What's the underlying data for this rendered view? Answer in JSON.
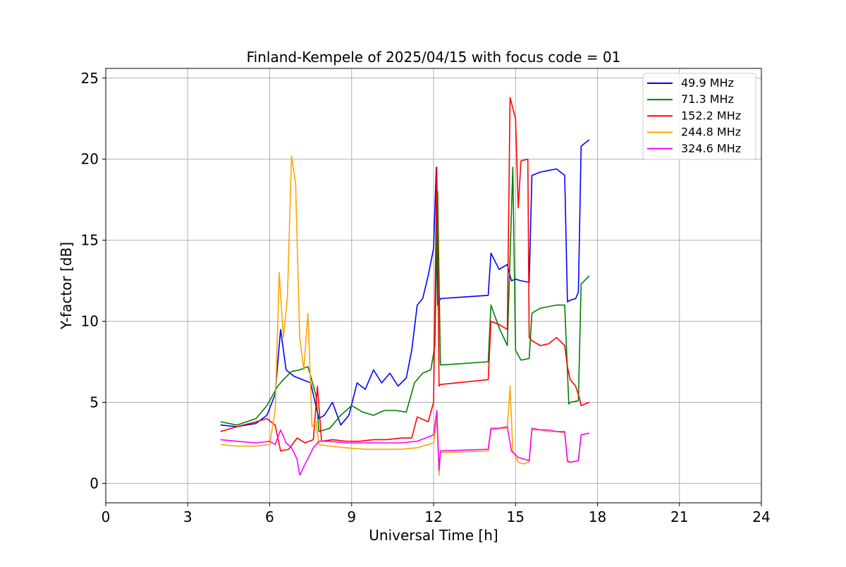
{
  "chart_data": {
    "type": "line",
    "title": "Finland-Kempele of 2025/04/15 with focus code = 01",
    "xlabel": "Universal Time [h]",
    "ylabel": "Y-factor [dB]",
    "xlim": [
      0,
      24
    ],
    "ylim": [
      -1.2,
      25.6
    ],
    "xticks": [
      0,
      3,
      6,
      9,
      12,
      15,
      18,
      21,
      24
    ],
    "xtick_labels": [
      "0",
      "3",
      "6",
      "9",
      "12",
      "15",
      "18",
      "21",
      "24"
    ],
    "yticks": [
      0,
      5,
      10,
      15,
      20,
      25
    ],
    "ytick_labels": [
      "0",
      "5",
      "10",
      "15",
      "20",
      "25"
    ],
    "grid": true,
    "legend_position": "top-right",
    "series": [
      {
        "name": " 49.9 MHz",
        "color": "#0000ff",
        "x": [
          4.2,
          4.8,
          5.5,
          5.9,
          6.2,
          6.4,
          6.6,
          6.9,
          7.2,
          7.5,
          7.8,
          8.0,
          8.3,
          8.6,
          8.9,
          9.2,
          9.5,
          9.8,
          10.1,
          10.4,
          10.7,
          11.0,
          11.2,
          11.4,
          11.6,
          11.8,
          12.0,
          12.1,
          12.15,
          12.25,
          14.0,
          14.1,
          14.4,
          14.7,
          14.85,
          15.0,
          15.2,
          15.5,
          15.6,
          15.9,
          16.2,
          16.5,
          16.8,
          16.9,
          17.0,
          17.2,
          17.3,
          17.4,
          17.7
        ],
        "y": [
          3.6,
          3.5,
          3.7,
          4.2,
          5.5,
          9.5,
          7.0,
          6.6,
          6.4,
          6.2,
          4.0,
          4.2,
          5.0,
          3.6,
          4.2,
          6.2,
          5.8,
          7.0,
          6.2,
          6.8,
          6.0,
          6.5,
          8.2,
          11.0,
          11.4,
          12.8,
          14.5,
          19.5,
          11.0,
          11.4,
          11.6,
          14.2,
          13.2,
          13.5,
          12.5,
          12.6,
          12.5,
          12.4,
          19.0,
          19.2,
          19.3,
          19.4,
          19.0,
          11.2,
          11.3,
          11.4,
          11.8,
          20.8,
          21.2
        ]
      },
      {
        "name": " 71.3 MHz",
        "color": "#008000",
        "x": [
          4.2,
          4.8,
          5.5,
          5.9,
          6.3,
          6.5,
          6.8,
          7.1,
          7.4,
          7.7,
          7.8,
          8.2,
          8.6,
          9.0,
          9.4,
          9.8,
          10.2,
          10.6,
          11.0,
          11.3,
          11.6,
          11.9,
          12.05,
          12.15,
          12.25,
          14.0,
          14.1,
          14.4,
          14.7,
          14.9,
          15.0,
          15.2,
          15.5,
          15.6,
          15.9,
          16.2,
          16.5,
          16.8,
          16.95,
          17.0,
          17.3,
          17.4,
          17.7
        ],
        "y": [
          3.8,
          3.6,
          4.0,
          4.8,
          6.0,
          6.4,
          6.9,
          7.0,
          7.2,
          5.4,
          3.2,
          3.4,
          4.2,
          4.8,
          4.4,
          4.2,
          4.5,
          4.5,
          4.4,
          6.2,
          6.8,
          7.0,
          8.5,
          18.0,
          7.3,
          7.5,
          11.0,
          9.6,
          8.5,
          19.5,
          8.2,
          7.6,
          7.7,
          10.5,
          10.8,
          10.9,
          11.0,
          11.0,
          4.9,
          5.0,
          5.1,
          12.3,
          12.8
        ]
      },
      {
        "name": " 152.2 MHz",
        "color": "#ff0000",
        "x": [
          4.2,
          4.8,
          5.5,
          5.9,
          6.2,
          6.4,
          6.7,
          7.0,
          7.3,
          7.6,
          7.75,
          7.9,
          8.3,
          8.8,
          9.3,
          9.8,
          10.3,
          10.8,
          11.2,
          11.4,
          11.8,
          12.0,
          12.12,
          12.2,
          12.25,
          14.0,
          14.1,
          14.4,
          14.7,
          14.8,
          15.0,
          15.1,
          15.2,
          15.45,
          15.5,
          15.6,
          15.9,
          16.2,
          16.5,
          16.8,
          16.9,
          17.0,
          17.2,
          17.35,
          17.4,
          17.7
        ],
        "y": [
          3.2,
          3.5,
          3.8,
          4.0,
          3.6,
          2.0,
          2.1,
          2.8,
          2.5,
          2.7,
          6.0,
          2.6,
          2.7,
          2.6,
          2.6,
          2.7,
          2.7,
          2.8,
          2.8,
          4.1,
          3.8,
          5.0,
          19.5,
          6.0,
          6.1,
          6.4,
          10.0,
          9.8,
          9.5,
          23.8,
          22.5,
          17.0,
          19.9,
          20.0,
          9.0,
          8.8,
          8.5,
          8.6,
          9.0,
          8.5,
          7.2,
          6.4,
          6.0,
          5.2,
          4.8,
          5.0
        ]
      },
      {
        "name": " 244.8 MHz",
        "color": "#ffa500",
        "x": [
          4.2,
          4.8,
          5.5,
          6.0,
          6.2,
          6.35,
          6.5,
          6.65,
          6.8,
          6.95,
          7.1,
          7.25,
          7.4,
          7.55,
          7.7,
          7.8,
          8.2,
          8.8,
          9.5,
          10.2,
          10.8,
          11.4,
          12.0,
          12.12,
          12.2,
          12.25,
          14.0,
          14.1,
          14.4,
          14.7,
          14.8,
          14.9,
          15.1,
          15.3,
          15.5,
          15.6,
          15.9,
          16.2,
          16.5,
          16.8,
          16.9,
          17.0,
          17.3,
          17.4,
          17.7
        ],
        "y": [
          2.4,
          2.3,
          2.3,
          2.4,
          4.5,
          13.0,
          9.0,
          11.5,
          20.2,
          18.5,
          9.0,
          7.0,
          10.5,
          3.5,
          3.8,
          2.4,
          2.3,
          2.2,
          2.1,
          2.1,
          2.1,
          2.2,
          2.5,
          4.0,
          0.5,
          1.9,
          2.0,
          3.3,
          3.4,
          3.4,
          6.0,
          2.0,
          1.3,
          1.2,
          1.3,
          3.3,
          3.3,
          3.2,
          3.2,
          3.1,
          1.3,
          1.3,
          1.4,
          3.0,
          3.1
        ]
      },
      {
        "name": " 324.6 MHz",
        "color": "#ff00ff",
        "x": [
          4.2,
          4.8,
          5.5,
          6.0,
          6.2,
          6.4,
          6.6,
          6.8,
          7.0,
          7.1,
          7.3,
          7.6,
          7.8,
          8.2,
          8.8,
          9.5,
          10.2,
          10.8,
          11.4,
          12.0,
          12.12,
          12.2,
          12.25,
          14.0,
          14.1,
          14.4,
          14.7,
          14.85,
          15.1,
          15.3,
          15.5,
          15.6,
          15.9,
          16.2,
          16.5,
          16.8,
          16.9,
          17.0,
          17.3,
          17.4,
          17.7
        ],
        "y": [
          2.7,
          2.6,
          2.5,
          2.6,
          2.4,
          3.3,
          2.5,
          2.2,
          1.5,
          0.5,
          1.2,
          2.2,
          2.6,
          2.6,
          2.5,
          2.5,
          2.5,
          2.5,
          2.6,
          3.0,
          4.5,
          0.8,
          2.0,
          2.1,
          3.4,
          3.4,
          3.5,
          2.0,
          1.6,
          1.5,
          1.4,
          3.4,
          3.3,
          3.3,
          3.2,
          3.2,
          1.4,
          1.3,
          1.4,
          3.0,
          3.1
        ]
      }
    ]
  }
}
